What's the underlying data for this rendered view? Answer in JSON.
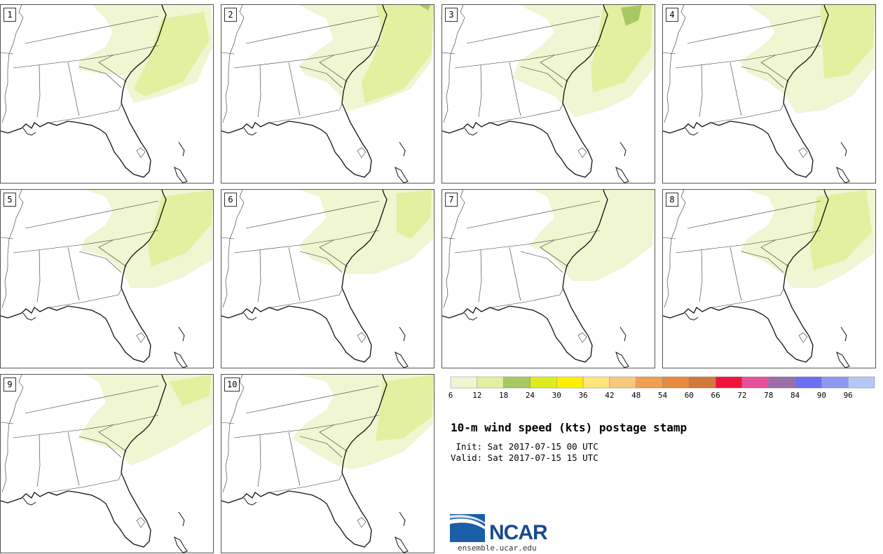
{
  "product": {
    "title": "10-m wind speed (kts) postage stamp",
    "init_line": " Init: Sat 2017-07-15 00 UTC",
    "valid_line": "Valid: Sat 2017-07-15 15 UTC"
  },
  "members": [
    {
      "label": "1"
    },
    {
      "label": "2"
    },
    {
      "label": "3"
    },
    {
      "label": "4"
    },
    {
      "label": "5"
    },
    {
      "label": "6"
    },
    {
      "label": "7"
    },
    {
      "label": "8"
    },
    {
      "label": "9"
    },
    {
      "label": "10"
    }
  ],
  "colorbar": {
    "units": "kts",
    "ticks": [
      "6",
      "12",
      "18",
      "24",
      "30",
      "36",
      "42",
      "48",
      "54",
      "60",
      "66",
      "72",
      "78",
      "84",
      "90",
      "96"
    ],
    "colors": [
      "#f0f5d2",
      "#e2f0a0",
      "#a8c864",
      "#dcec1e",
      "#fff000",
      "#ffe678",
      "#f5c87d",
      "#f0a050",
      "#e68c3c",
      "#d2783c",
      "#f0143c",
      "#e6509b",
      "#9b6eaa",
      "#6e6ef0",
      "#8c9bf0",
      "#b4c8f5"
    ]
  },
  "logo": {
    "name": "NCAR",
    "url": "ensemble.ucar.edu"
  }
}
